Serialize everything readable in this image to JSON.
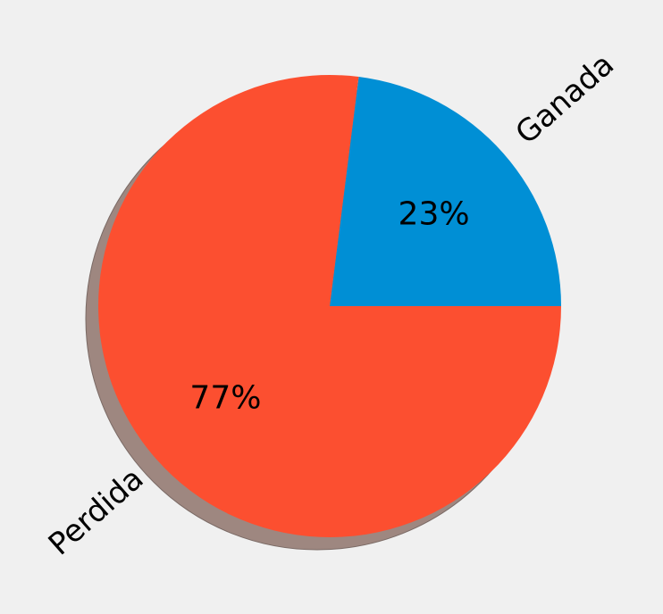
{
  "chart_data": {
    "type": "pie",
    "labels": [
      "Ganada",
      "Perdida"
    ],
    "values": [
      23,
      77
    ],
    "autopct_labels": [
      "23%",
      "77%"
    ],
    "colors": [
      "#008fd5",
      "#fc4f30"
    ],
    "start_angle_deg": 0,
    "direction": "counterclockwise",
    "shadow": true,
    "shadow_color": "#9e8780",
    "background_color": "#f0f0f0"
  }
}
